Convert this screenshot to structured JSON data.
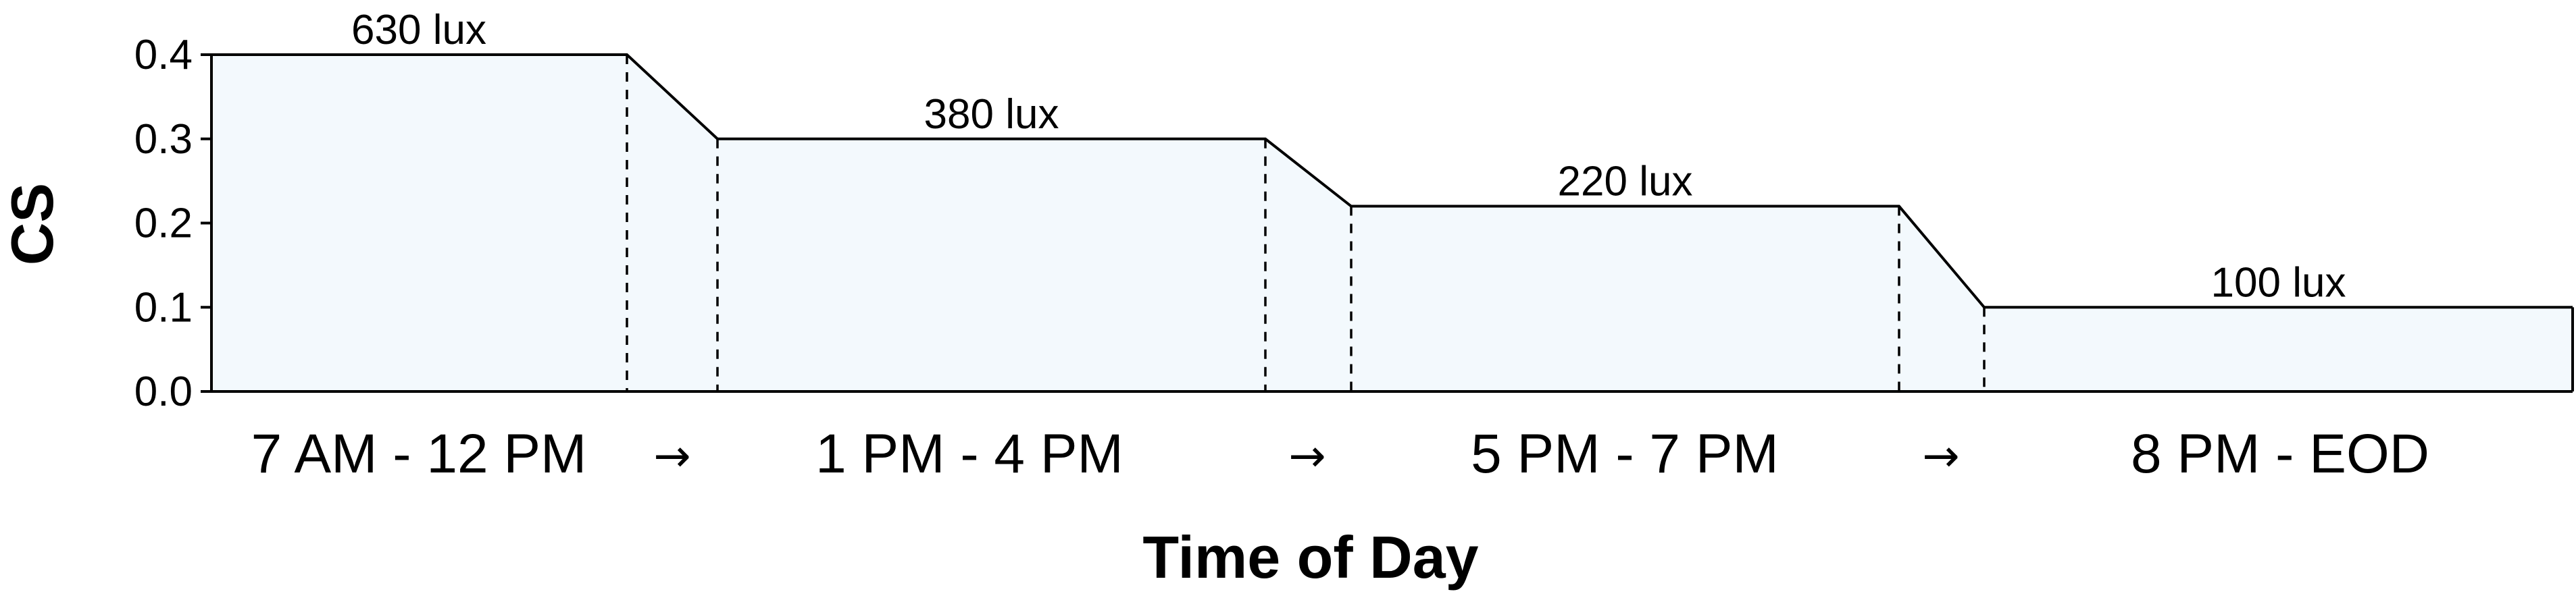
{
  "chart_data": {
    "type": "area",
    "xlabel": "Time of Day",
    "ylabel": "CS",
    "ylim": [
      0,
      0.4
    ],
    "yticks": [
      "0.0",
      "0.1",
      "0.2",
      "0.3",
      "0.4"
    ],
    "colors": {
      "fill": "#f3f9fd",
      "line": "#000000"
    },
    "segments": [
      {
        "label": "7 AM - 12 PM",
        "value": 0.4,
        "annotation": "630 lux"
      },
      {
        "label": "1 PM - 4 PM",
        "value": 0.3,
        "annotation": "380 lux"
      },
      {
        "label": "5 PM - 7 PM",
        "value": 0.22,
        "annotation": "220 lux"
      },
      {
        "label": "8 PM - EOD",
        "value": 0.1,
        "annotation": "100 lux"
      }
    ],
    "transition_symbol": "→"
  }
}
